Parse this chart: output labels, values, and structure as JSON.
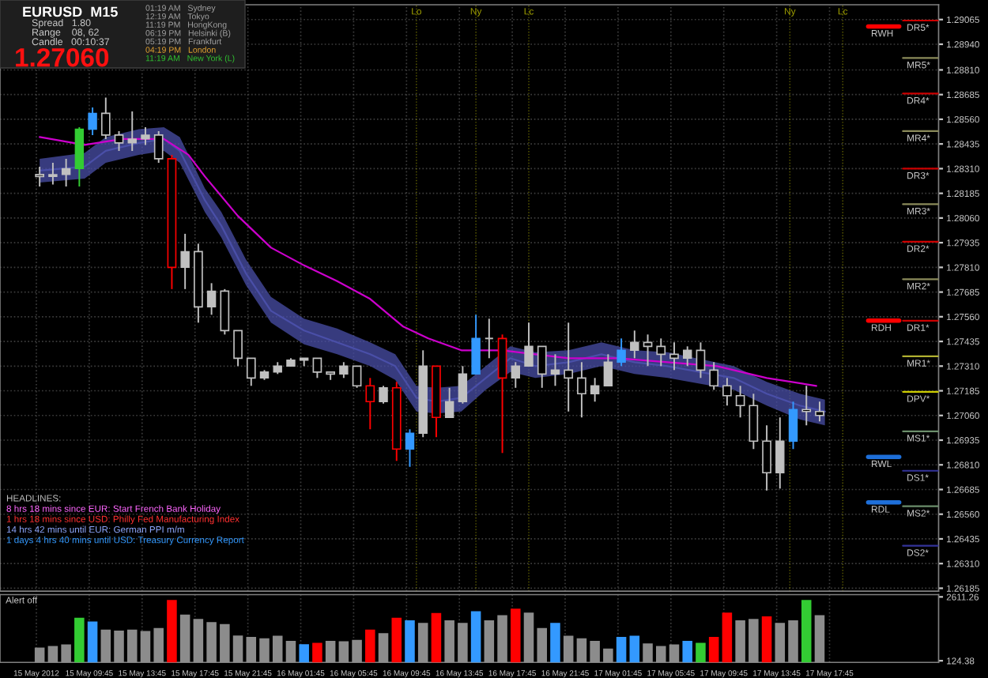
{
  "chart_data": [
    {
      "type": "candlestick",
      "x": [
        "2012-05-15T06:00",
        "2012-05-15T07:00",
        "2012-05-15T08:00",
        "2012-05-15T09:00",
        "2012-05-15T10:00",
        "2012-05-15T11:00",
        "2012-05-15T12:00",
        "2012-05-15T13:00",
        "2012-05-15T14:00",
        "2012-05-15T15:00",
        "2012-05-15T16:00",
        "2012-05-15T17:00",
        "2012-05-15T18:00",
        "2012-05-15T19:00",
        "2012-05-15T20:00",
        "2012-05-15T21:00",
        "2012-05-15T22:00",
        "2012-05-15T23:00",
        "2012-05-16T00:00",
        "2012-05-16T01:00",
        "2012-05-16T02:00",
        "2012-05-16T03:00",
        "2012-05-16T04:00",
        "2012-05-16T05:00",
        "2012-05-16T06:00",
        "2012-05-16T07:00",
        "2012-05-16T08:00",
        "2012-05-16T09:00",
        "2012-05-16T10:00",
        "2012-05-16T11:00",
        "2012-05-16T12:00",
        "2012-05-16T13:00",
        "2012-05-16T14:00",
        "2012-05-16T15:00",
        "2012-05-16T16:00",
        "2012-05-16T17:00",
        "2012-05-16T18:00",
        "2012-05-16T19:00",
        "2012-05-16T20:00",
        "2012-05-16T21:00",
        "2012-05-16T22:00",
        "2012-05-16T23:00",
        "2012-05-17T00:00",
        "2012-05-17T01:00",
        "2012-05-17T02:00",
        "2012-05-17T03:00",
        "2012-05-17T04:00",
        "2012-05-17T05:00",
        "2012-05-17T06:00",
        "2012-05-17T07:00",
        "2012-05-17T08:00",
        "2012-05-17T09:00",
        "2012-05-17T10:00",
        "2012-05-17T11:00",
        "2012-05-17T12:00",
        "2012-05-17T13:00",
        "2012-05-17T14:00",
        "2012-05-17T15:00",
        "2012-05-17T16:00",
        "2012-05-17T17:00"
      ],
      "ohlc": [
        [
          1.2828,
          1.2832,
          1.2822,
          1.2827
        ],
        [
          1.2827,
          1.2834,
          1.2823,
          1.2828
        ],
        [
          1.2828,
          1.2836,
          1.2822,
          1.2831
        ],
        [
          1.2831,
          1.2852,
          1.2822,
          1.2851
        ],
        [
          1.2851,
          1.2862,
          1.2848,
          1.2859
        ],
        [
          1.2859,
          1.2867,
          1.2846,
          1.2848
        ],
        [
          1.2848,
          1.285,
          1.284,
          1.2844
        ],
        [
          1.2844,
          1.286,
          1.284,
          1.2846
        ],
        [
          1.2846,
          1.2852,
          1.2843,
          1.2848
        ],
        [
          1.2848,
          1.285,
          1.2834,
          1.2836
        ],
        [
          1.2836,
          1.2838,
          1.277,
          1.2781
        ],
        [
          1.2781,
          1.2798,
          1.277,
          1.2789
        ],
        [
          1.2789,
          1.2793,
          1.2753,
          1.2761
        ],
        [
          1.2761,
          1.2773,
          1.2757,
          1.2769
        ],
        [
          1.2769,
          1.277,
          1.2747,
          1.2749
        ],
        [
          1.2749,
          1.2749,
          1.2731,
          1.2735
        ],
        [
          1.2735,
          1.2735,
          1.2721,
          1.2725
        ],
        [
          1.2725,
          1.2729,
          1.2724,
          1.2728
        ],
        [
          1.2728,
          1.2733,
          1.2727,
          1.2731
        ],
        [
          1.2731,
          1.2735,
          1.2731,
          1.2734
        ],
        [
          1.2734,
          1.2735,
          1.2731,
          1.2735
        ],
        [
          1.2735,
          1.2735,
          1.2725,
          1.2728
        ],
        [
          1.2728,
          1.2728,
          1.2724,
          1.2727
        ],
        [
          1.2727,
          1.2733,
          1.2725,
          1.2731
        ],
        [
          1.2731,
          1.2731,
          1.272,
          1.2721
        ],
        [
          1.2721,
          1.2725,
          1.2699,
          1.2713
        ],
        [
          1.2713,
          1.2721,
          1.2712,
          1.272
        ],
        [
          1.272,
          1.2723,
          1.2683,
          1.2689
        ],
        [
          1.2689,
          1.2699,
          1.268,
          1.2697
        ],
        [
          1.2697,
          1.2739,
          1.2695,
          1.2731
        ],
        [
          1.2731,
          1.2731,
          1.2695,
          1.2705
        ],
        [
          1.2705,
          1.272,
          1.2705,
          1.2713
        ],
        [
          1.2713,
          1.2731,
          1.2712,
          1.2727
        ],
        [
          1.2727,
          1.2757,
          1.2727,
          1.2745
        ],
        [
          1.2745,
          1.2755,
          1.2735,
          1.2745
        ],
        [
          1.2745,
          1.2747,
          1.2687,
          1.2725
        ],
        [
          1.2725,
          1.2733,
          1.272,
          1.2731
        ],
        [
          1.2731,
          1.2753,
          1.2731,
          1.2741
        ],
        [
          1.2741,
          1.2741,
          1.272,
          1.2727
        ],
        [
          1.2727,
          1.2737,
          1.2721,
          1.2729
        ],
        [
          1.2729,
          1.2753,
          1.2708,
          1.2725
        ],
        [
          1.2725,
          1.2733,
          1.2705,
          1.2717
        ],
        [
          1.2717,
          1.2725,
          1.2713,
          1.2721
        ],
        [
          1.2721,
          1.2737,
          1.2721,
          1.2733
        ],
        [
          1.2733,
          1.2745,
          1.2731,
          1.2739
        ],
        [
          1.2739,
          1.2749,
          1.2735,
          1.2743
        ],
        [
          1.2743,
          1.2747,
          1.2731,
          1.2741
        ],
        [
          1.2741,
          1.2745,
          1.2731,
          1.2737
        ],
        [
          1.2737,
          1.2743,
          1.2729,
          1.2735
        ],
        [
          1.2735,
          1.2741,
          1.2731,
          1.2739
        ],
        [
          1.2739,
          1.2743,
          1.2725,
          1.2729
        ],
        [
          1.2729,
          1.2733,
          1.2719,
          1.2721
        ],
        [
          1.2721,
          1.2725,
          1.2711,
          1.2716
        ],
        [
          1.2716,
          1.2721,
          1.2705,
          1.2711
        ],
        [
          1.2711,
          1.2717,
          1.2689,
          1.2693
        ],
        [
          1.2693,
          1.2701,
          1.2668,
          1.2677
        ],
        [
          1.2677,
          1.2705,
          1.2669,
          1.2693
        ],
        [
          1.2693,
          1.2713,
          1.2689,
          1.2709
        ],
        [
          1.2709,
          1.2721,
          1.2701,
          1.2708
        ],
        [
          1.2708,
          1.2713,
          1.2703,
          1.2706
        ]
      ],
      "colors": [
        "#c0c0c0",
        "#c0c0c0",
        "#c0c0c0",
        "#33cc33",
        "#3399ff",
        "#c0c0c0",
        "#c0c0c0",
        "#c0c0c0",
        "#c0c0c0",
        "#c0c0c0",
        "#ff0000",
        "#c0c0c0",
        "#c0c0c0",
        "#c0c0c0",
        "#c0c0c0",
        "#c0c0c0",
        "#c0c0c0",
        "#c0c0c0",
        "#c0c0c0",
        "#c0c0c0",
        "#c0c0c0",
        "#c0c0c0",
        "#c0c0c0",
        "#c0c0c0",
        "#c0c0c0",
        "#ff0000",
        "#c0c0c0",
        "#ff0000",
        "#3399ff",
        "#c0c0c0",
        "#ff0000",
        "#c0c0c0",
        "#c0c0c0",
        "#3399ff",
        "#c0c0c0",
        "#ff0000",
        "#c0c0c0",
        "#c0c0c0",
        "#c0c0c0",
        "#c0c0c0",
        "#c0c0c0",
        "#c0c0c0",
        "#c0c0c0",
        "#c0c0c0",
        "#3399ff",
        "#c0c0c0",
        "#c0c0c0",
        "#c0c0c0",
        "#c0c0c0",
        "#c0c0c0",
        "#c0c0c0",
        "#c0c0c0",
        "#c0c0c0",
        "#c0c0c0",
        "#c0c0c0",
        "#c0c0c0",
        "#c0c0c0",
        "#3399ff",
        "#c0c0c0",
        "#c0c0c0"
      ],
      "series": [
        {
          "type": "line",
          "color": "#4a4fa8",
          "x": [
            "2012-05-15T06:00",
            "2012-05-15T09:24",
            "2012-05-15T11:00",
            "2012-05-15T13:30",
            "2012-05-15T15:24",
            "2012-05-15T16:36",
            "2012-05-15T18:30",
            "2012-05-15T19:45",
            "2012-05-15T21:36",
            "2012-05-15T23:30",
            "2012-05-16T02:00",
            "2012-05-16T04:30",
            "2012-05-16T07:00",
            "2012-05-16T08:54",
            "2012-05-16T10:30",
            "2012-05-16T12:00",
            "2012-05-16T13:54",
            "2012-05-16T15:45",
            "2012-05-16T17:36",
            "2012-05-16T19:30",
            "2012-05-16T22:00",
            "2012-05-17T00:30",
            "2012-05-17T03:00",
            "2012-05-17T05:30",
            "2012-05-17T10:30",
            "2012-05-17T13:00",
            "2012-05-17T15:30",
            "2012-05-17T17:24"
          ],
          "values": [
            1.283,
            1.2832,
            1.284,
            1.2844,
            1.2846,
            1.284,
            1.2815,
            1.2802,
            1.2778,
            1.2759,
            1.2749,
            1.2743,
            1.2737,
            1.2731,
            1.2715,
            1.2713,
            1.2715,
            1.2725,
            1.2735,
            1.2731,
            1.2733,
            1.2737,
            1.2733,
            1.2731,
            1.2725,
            1.2717,
            1.2711,
            1.2708
          ],
          "upper": [
            1.2836,
            1.2839,
            1.2847,
            1.2851,
            1.2852,
            1.2847,
            1.2821,
            1.2809,
            1.2785,
            1.2766,
            1.2755,
            1.275,
            1.2743,
            1.2737,
            1.2721,
            1.272,
            1.2721,
            1.2731,
            1.2741,
            1.2738,
            1.2739,
            1.2743,
            1.2739,
            1.2738,
            1.2731,
            1.2723,
            1.2717,
            1.2714
          ],
          "lower": [
            1.2824,
            1.2826,
            1.2834,
            1.2838,
            1.284,
            1.2834,
            1.2809,
            1.2796,
            1.2772,
            1.2753,
            1.2742,
            1.2737,
            1.2731,
            1.2724,
            1.2708,
            1.2707,
            1.2708,
            1.2719,
            1.2728,
            1.2725,
            1.2727,
            1.2731,
            1.2727,
            1.2725,
            1.2719,
            1.2711,
            1.2704,
            1.2701
          ]
        },
        {
          "type": "line",
          "color": "#cc00cc",
          "x": [
            "2012-05-15T06:00",
            "2012-05-15T09:24",
            "2012-05-15T12:15",
            "2012-05-15T15:24",
            "2012-05-15T17:15",
            "2012-05-15T18:30",
            "2012-05-15T21:00",
            "2012-05-15T23:30",
            "2012-05-16T02:00",
            "2012-05-16T04:30",
            "2012-05-16T07:00",
            "2012-05-16T09:30",
            "2012-05-16T11:24",
            "2012-05-16T13:54",
            "2012-05-16T17:00",
            "2012-05-16T19:30",
            "2012-05-16T22:00",
            "2012-05-17T01:45",
            "2012-05-17T05:30",
            "2012-05-17T09:15",
            "2012-05-17T13:00",
            "2012-05-17T16:45"
          ],
          "values": [
            1.2847,
            1.2843,
            1.2846,
            1.2846,
            1.2838,
            1.2827,
            1.2807,
            1.2791,
            1.2782,
            1.2774,
            1.2765,
            1.2751,
            1.2745,
            1.2739,
            1.2739,
            1.2737,
            1.2735,
            1.2735,
            1.2733,
            1.2731,
            1.2725,
            1.2721
          ]
        }
      ],
      "xlim": [
        "2012-05-15T03:00",
        "2012-05-18T02:00"
      ],
      "xticks": [
        {
          "value": "2012-05-15T05:45",
          "label": null
        },
        {
          "value": "2012-05-15T09:45",
          "label": null
        },
        {
          "value": "2012-05-15T13:45",
          "label": null
        },
        {
          "value": "2012-05-15T17:45",
          "label": null
        },
        {
          "value": "2012-05-15T21:45",
          "label": null
        },
        {
          "value": "2012-05-16T01:45",
          "label": null
        },
        {
          "value": "2012-05-16T05:45",
          "label": null
        },
        {
          "value": "2012-05-16T09:45",
          "label": null
        },
        {
          "value": "2012-05-16T13:45",
          "label": null
        },
        {
          "value": "2012-05-16T17:45",
          "label": null
        },
        {
          "value": "2012-05-16T21:45",
          "label": null
        },
        {
          "value": "2012-05-17T01:45",
          "label": null
        },
        {
          "value": "2012-05-17T05:45",
          "label": null
        },
        {
          "value": "2012-05-17T09:45",
          "label": null
        },
        {
          "value": "2012-05-17T13:45",
          "label": null
        },
        {
          "value": "2012-05-17T17:45",
          "label": null
        }
      ],
      "ylim": [
        1.2617,
        1.2914
      ],
      "yticks": [
        {
          "value": 1.26185,
          "label": "1.26185"
        },
        {
          "value": 1.2631,
          "label": "1.26310"
        },
        {
          "value": 1.26435,
          "label": "1.26435"
        },
        {
          "value": 1.2656,
          "label": "1.26560"
        },
        {
          "value": 1.26685,
          "label": "1.26685"
        },
        {
          "value": 1.2681,
          "label": "1.26810"
        },
        {
          "value": 1.26935,
          "label": "1.26935"
        },
        {
          "value": 1.2706,
          "label": "1.27060"
        },
        {
          "value": 1.27185,
          "label": "1.27185"
        },
        {
          "value": 1.2731,
          "label": "1.27310"
        },
        {
          "value": 1.27435,
          "label": "1.27435"
        },
        {
          "value": 1.2756,
          "label": "1.27560"
        },
        {
          "value": 1.27685,
          "label": "1.27685"
        },
        {
          "value": 1.2781,
          "label": "1.27810"
        },
        {
          "value": 1.27935,
          "label": "1.27935"
        },
        {
          "value": 1.2806,
          "label": "1.28060"
        },
        {
          "value": 1.28185,
          "label": "1.28185"
        },
        {
          "value": 1.2831,
          "label": "1.28310"
        },
        {
          "value": 1.28435,
          "label": "1.28435"
        },
        {
          "value": 1.2856,
          "label": "1.28560"
        },
        {
          "value": 1.28685,
          "label": "1.28685"
        },
        {
          "value": 1.2881,
          "label": "1.28810"
        },
        {
          "value": 1.2894,
          "label": "1.28940"
        },
        {
          "value": 1.29065,
          "label": "1.29065"
        }
      ],
      "ref_lines": [
        {
          "axis": "y",
          "value": 1.2906,
          "label": "DR5*",
          "color": "#cc0000"
        },
        {
          "axis": "y",
          "value": 1.2887,
          "label": "MR5*",
          "color": "#8a8a5a"
        },
        {
          "axis": "y",
          "value": 1.2869,
          "label": "DR4*",
          "color": "#cc0000"
        },
        {
          "axis": "y",
          "value": 1.285,
          "label": "MR4*",
          "color": "#8a8a5a"
        },
        {
          "axis": "y",
          "value": 1.2831,
          "label": "DR3*",
          "color": "#cc0000"
        },
        {
          "axis": "y",
          "value": 1.2813,
          "label": "MR3*",
          "color": "#8a8a5a"
        },
        {
          "axis": "y",
          "value": 1.2794,
          "label": "DR2*",
          "color": "#cc0000"
        },
        {
          "axis": "y",
          "value": 1.2775,
          "label": "MR2*",
          "color": "#8a8a5a"
        },
        {
          "axis": "y",
          "value": 1.2754,
          "label": "DR1*",
          "color": "#cc0000"
        },
        {
          "axis": "y",
          "value": 1.2736,
          "label": "MR1*",
          "color": "#b0b030"
        },
        {
          "axis": "y",
          "value": 1.2718,
          "label": "DPV*",
          "color": "#cccc00"
        },
        {
          "axis": "y",
          "value": 1.2698,
          "label": "MS1*",
          "color": "#6b8e6b"
        },
        {
          "axis": "y",
          "value": 1.2678,
          "label": "DS1*",
          "color": "#333399"
        },
        {
          "axis": "y",
          "value": 1.266,
          "label": "MS2*",
          "color": "#6b8e6b"
        },
        {
          "axis": "y",
          "value": 1.264,
          "label": "DS2*",
          "color": "#333399"
        },
        {
          "axis": "y",
          "value": 1.2903,
          "label": "RWH",
          "color": "#ff0000"
        },
        {
          "axis": "y",
          "value": 1.2754,
          "label": "RDH",
          "color": "#ff0000"
        },
        {
          "axis": "y",
          "value": 1.2685,
          "label": "RWL",
          "color": "#1e6fd9"
        },
        {
          "axis": "y",
          "value": 1.2662,
          "label": "RDL",
          "color": "#1e6fd9"
        },
        {
          "axis": "x",
          "value": "2012-05-16T10:30",
          "label": "Lo",
          "color": "#a0a000"
        },
        {
          "axis": "x",
          "value": "2012-05-16T15:00",
          "label": "Ny",
          "color": "#a0a000"
        },
        {
          "axis": "x",
          "value": "2012-05-16T19:00",
          "label": "Lc",
          "color": "#a0a000"
        },
        {
          "axis": "x",
          "value": "2012-05-17T14:45",
          "label": "Ny",
          "color": "#a0a000"
        },
        {
          "axis": "x",
          "value": "2012-05-17T18:45",
          "label": "Lc",
          "color": "#a0a000"
        }
      ],
      "annotations": [
        "EURUSD  M15",
        "Spread   1.80",
        "Range    08, 62",
        "Candle   00:10:37",
        "1.27060",
        "01:19 AM   Sydney",
        "12:19 AM   Tokyo",
        "11:19 PM   HongKong",
        "06:19 PM   Helsinki (B)",
        "05:19 PM   Frankfurt",
        "04:19 PM   London",
        "11:19 AM   New York (L)",
        "HEADLINES:",
        "8 hrs 18 mins since EUR: Start French Bank Holiday",
        "1 hrs 18 mins since USD: Philly Fed Manufacturing Index",
        "14 hrs 42 mins until EUR: German PPI m/m",
        "1 days 4 hrs 40 mins until USD: Treasury Currency Report"
      ],
      "grid": true,
      "tick_labels": "y"
    },
    {
      "type": "bar",
      "x": [
        "2012-05-15T06:00",
        "2012-05-15T07:00",
        "2012-05-15T08:00",
        "2012-05-15T09:00",
        "2012-05-15T10:00",
        "2012-05-15T11:00",
        "2012-05-15T12:00",
        "2012-05-15T13:00",
        "2012-05-15T14:00",
        "2012-05-15T15:00",
        "2012-05-15T16:00",
        "2012-05-15T17:00",
        "2012-05-15T18:00",
        "2012-05-15T19:00",
        "2012-05-15T20:00",
        "2012-05-15T21:00",
        "2012-05-15T22:00",
        "2012-05-15T23:00",
        "2012-05-16T00:00",
        "2012-05-16T01:00",
        "2012-05-16T02:00",
        "2012-05-16T03:00",
        "2012-05-16T04:00",
        "2012-05-16T05:00",
        "2012-05-16T06:00",
        "2012-05-16T07:00",
        "2012-05-16T08:00",
        "2012-05-16T09:00",
        "2012-05-16T10:00",
        "2012-05-16T11:00",
        "2012-05-16T12:00",
        "2012-05-16T13:00",
        "2012-05-16T14:00",
        "2012-05-16T15:00",
        "2012-05-16T16:00",
        "2012-05-16T17:00",
        "2012-05-16T18:00",
        "2012-05-16T19:00",
        "2012-05-16T20:00",
        "2012-05-16T21:00",
        "2012-05-16T22:00",
        "2012-05-16T23:00",
        "2012-05-17T00:00",
        "2012-05-17T01:00",
        "2012-05-17T02:00",
        "2012-05-17T03:00",
        "2012-05-17T04:00",
        "2012-05-17T05:00",
        "2012-05-17T06:00",
        "2012-05-17T07:00",
        "2012-05-17T08:00",
        "2012-05-17T09:00",
        "2012-05-17T10:00",
        "2012-05-17T11:00",
        "2012-05-17T12:00",
        "2012-05-17T13:00",
        "2012-05-17T14:00",
        "2012-05-17T15:00",
        "2012-05-17T16:00",
        "2012-05-17T17:00"
      ],
      "values": [
        640,
        700,
        760,
        1800,
        1650,
        1340,
        1300,
        1340,
        1280,
        1400,
        2490,
        1920,
        1750,
        1630,
        1550,
        1110,
        1050,
        1000,
        1100,
        900,
        770,
        820,
        900,
        880,
        940,
        1340,
        1200,
        1800,
        1700,
        1600,
        1980,
        1700,
        1600,
        2050,
        1700,
        1900,
        2150,
        2000,
        1400,
        1600,
        1100,
        1000,
        900,
        600,
        1050,
        1100,
        800,
        700,
        760,
        900,
        820,
        1050,
        2000,
        1700,
        1750,
        1850,
        1600,
        1700,
        2490,
        1900
      ],
      "colors": [
        "#8c8c8c",
        "#8c8c8c",
        "#8c8c8c",
        "#33cc33",
        "#3399ff",
        "#8c8c8c",
        "#8c8c8c",
        "#8c8c8c",
        "#8c8c8c",
        "#8c8c8c",
        "#ff0000",
        "#8c8c8c",
        "#8c8c8c",
        "#8c8c8c",
        "#8c8c8c",
        "#8c8c8c",
        "#8c8c8c",
        "#8c8c8c",
        "#8c8c8c",
        "#8c8c8c",
        "#3399ff",
        "#ff0000",
        "#8c8c8c",
        "#8c8c8c",
        "#8c8c8c",
        "#ff0000",
        "#8c8c8c",
        "#ff0000",
        "#3399ff",
        "#8c8c8c",
        "#ff0000",
        "#8c8c8c",
        "#8c8c8c",
        "#3399ff",
        "#8c8c8c",
        "#8c8c8c",
        "#ff0000",
        "#8c8c8c",
        "#8c8c8c",
        "#3399ff",
        "#8c8c8c",
        "#8c8c8c",
        "#8c8c8c",
        "#8c8c8c",
        "#3399ff",
        "#3399ff",
        "#8c8c8c",
        "#8c8c8c",
        "#8c8c8c",
        "#3399ff",
        "#33cc33",
        "#ff0000",
        "#ff0000",
        "#8c8c8c",
        "#8c8c8c",
        "#ff0000",
        "#8c8c8c",
        "#8c8c8c",
        "#33cc33",
        "#8c8c8c"
      ],
      "xlim": [
        "2012-05-15T03:00",
        "2012-05-18T02:00"
      ],
      "xticks": [
        {
          "value": "2012-05-15T05:45",
          "label": "15 May 2012"
        },
        {
          "value": "2012-05-15T09:45",
          "label": "15 May 09:45"
        },
        {
          "value": "2012-05-15T13:45",
          "label": "15 May 13:45"
        },
        {
          "value": "2012-05-15T17:45",
          "label": "15 May 17:45"
        },
        {
          "value": "2012-05-15T21:45",
          "label": "15 May 21:45"
        },
        {
          "value": "2012-05-16T01:45",
          "label": "16 May 01:45"
        },
        {
          "value": "2012-05-16T05:45",
          "label": "16 May 05:45"
        },
        {
          "value": "2012-05-16T09:45",
          "label": "16 May 09:45"
        },
        {
          "value": "2012-05-16T13:45",
          "label": "16 May 13:45"
        },
        {
          "value": "2012-05-16T17:45",
          "label": "16 May 17:45"
        },
        {
          "value": "2012-05-16T21:45",
          "label": "16 May 21:45"
        },
        {
          "value": "2012-05-17T01:45",
          "label": "17 May 01:45"
        },
        {
          "value": "2012-05-17T05:45",
          "label": "17 May 05:45"
        },
        {
          "value": "2012-05-17T09:45",
          "label": "17 May 09:45"
        },
        {
          "value": "2012-05-17T13:45",
          "label": "17 May 13:45"
        },
        {
          "value": "2012-05-17T17:45",
          "label": "17 May 17:45"
        }
      ],
      "ylim": [
        60,
        2700
      ],
      "yticks": [
        124.38,
        2611.26
      ],
      "annotations": [
        "Alert off"
      ],
      "grid": "x"
    }
  ]
}
